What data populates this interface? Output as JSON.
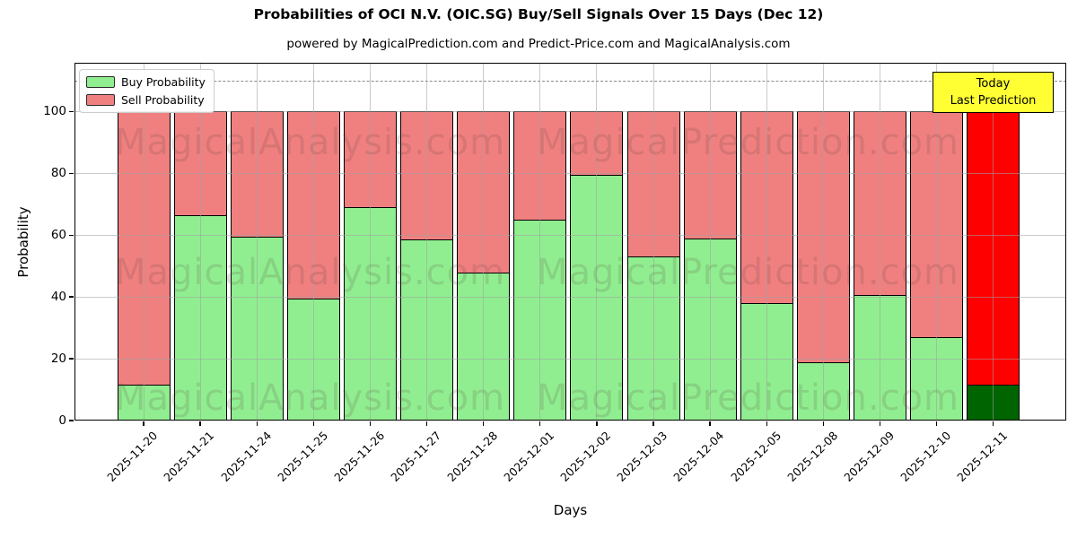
{
  "title": "Probabilities of OCI N.V. (OIC.SG) Buy/Sell Signals Over 15 Days (Dec 12)",
  "subtitle": "powered by MagicalPrediction.com and Predict-Price.com and MagicalAnalysis.com",
  "axes": {
    "xlabel": "Days",
    "ylabel": "Probability",
    "yticks": [
      0,
      20,
      40,
      60,
      80,
      100
    ]
  },
  "legend": {
    "items": [
      {
        "label": "Buy Probability",
        "color": "#90EE90"
      },
      {
        "label": "Sell Probability",
        "color": "#F08080"
      }
    ]
  },
  "annotation_box": {
    "line1": "Today",
    "line2": "Last Prediction",
    "bg_color": "#FFFF33"
  },
  "watermarks": {
    "left_text": "MagicalAnalysis.com",
    "right_text": "MagicalPrediction.com"
  },
  "colors": {
    "buy": "#90EE90",
    "sell": "#F08080",
    "today_buy": "#006400",
    "today_sell": "#FF0000",
    "grid": "#a0a0a0",
    "dashed_line": "#8a8a8a"
  },
  "chart_data": {
    "type": "bar",
    "stacked": true,
    "title": "Probabilities of OCI N.V. (OIC.SG) Buy/Sell Signals Over 15 Days (Dec 12)",
    "xlabel": "Days",
    "ylabel": "Probability",
    "ylim": [
      0,
      115.8
    ],
    "grid": true,
    "legend_position": "upper left",
    "dashed_line_y": 110,
    "categories": [
      "2025-11-20",
      "2025-11-21",
      "2025-11-24",
      "2025-11-25",
      "2025-11-26",
      "2025-11-27",
      "2025-11-28",
      "2025-12-01",
      "2025-12-02",
      "2025-12-03",
      "2025-12-04",
      "2025-12-05",
      "2025-12-08",
      "2025-12-09",
      "2025-12-10",
      "2025-12-11"
    ],
    "series": [
      {
        "name": "Buy Probability",
        "values": [
          11.5,
          66.5,
          59.5,
          39.5,
          69,
          58.5,
          48,
          65,
          79.5,
          53,
          59,
          38,
          19,
          40.5,
          27,
          11.5
        ]
      },
      {
        "name": "Sell Probability",
        "values": [
          88.5,
          33.5,
          40.5,
          60.5,
          31,
          41.5,
          52,
          35,
          20.5,
          47,
          41,
          62,
          81,
          59.5,
          73,
          88.5
        ]
      }
    ],
    "today_index": 15
  }
}
